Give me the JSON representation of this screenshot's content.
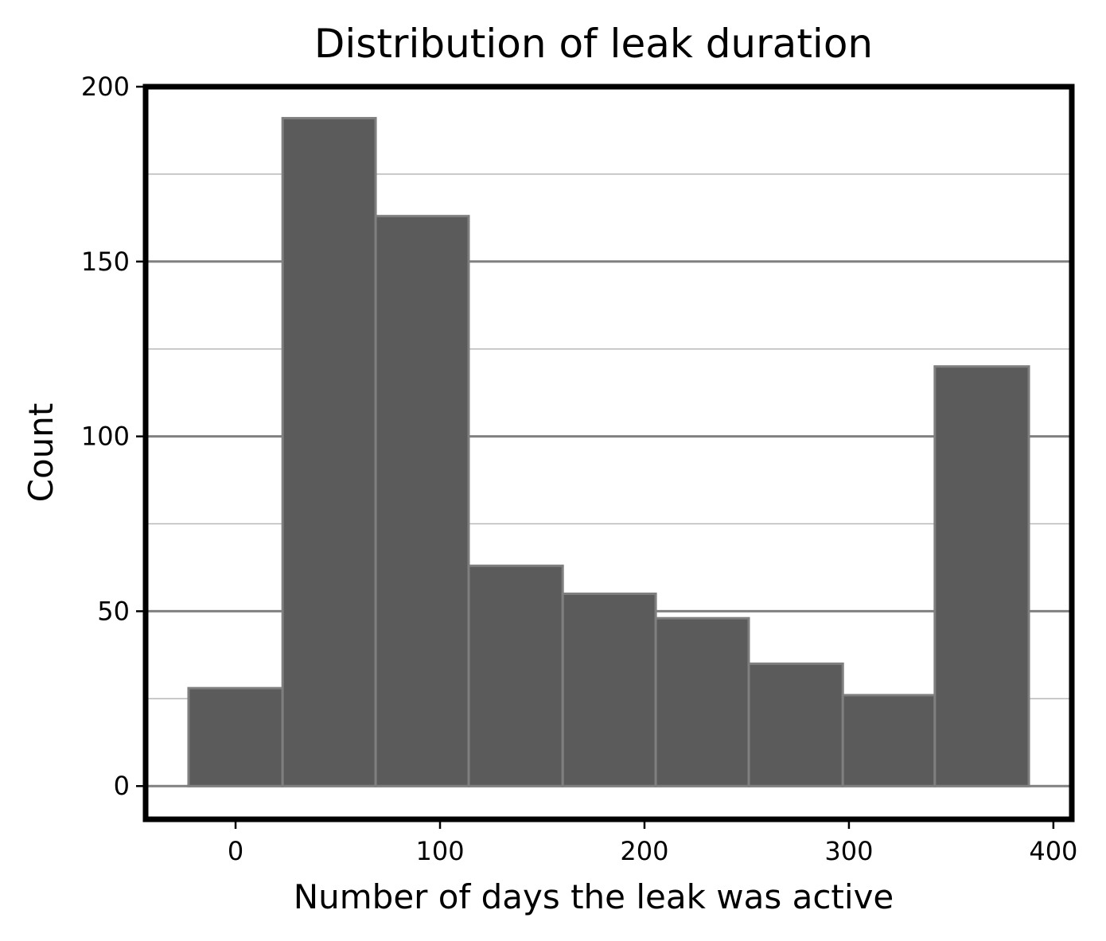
{
  "chart_data": {
    "type": "bar",
    "title": "Distribution of leak duration",
    "xlabel": "Number of days the leak was active",
    "ylabel": "Count",
    "bins": [
      {
        "x0": -23,
        "x1": 23,
        "value": 28
      },
      {
        "x0": 23,
        "x1": 68.5,
        "value": 191
      },
      {
        "x0": 68.5,
        "x1": 114,
        "value": 163
      },
      {
        "x0": 114,
        "x1": 160,
        "value": 63
      },
      {
        "x0": 160,
        "x1": 205.5,
        "value": 55
      },
      {
        "x0": 205.5,
        "x1": 251,
        "value": 48
      },
      {
        "x0": 251,
        "x1": 297,
        "value": 35
      },
      {
        "x0": 297,
        "x1": 342,
        "value": 26
      },
      {
        "x0": 342,
        "x1": 388,
        "value": 120
      }
    ],
    "xlim": [
      -44,
      409
    ],
    "ylim": [
      -9.5,
      200
    ],
    "xticks": [
      0,
      100,
      200,
      300,
      400
    ],
    "yticks": [
      0,
      50,
      100,
      150,
      200
    ],
    "y_minor_ticks": [
      25,
      75,
      125,
      175
    ],
    "grid": true,
    "colors": {
      "bar_fill": "#5b5b5b",
      "bar_edge": "#7f7f7f",
      "grid_major": "#808080",
      "grid_minor": "#b8b8b8",
      "frame": "#000000"
    }
  }
}
